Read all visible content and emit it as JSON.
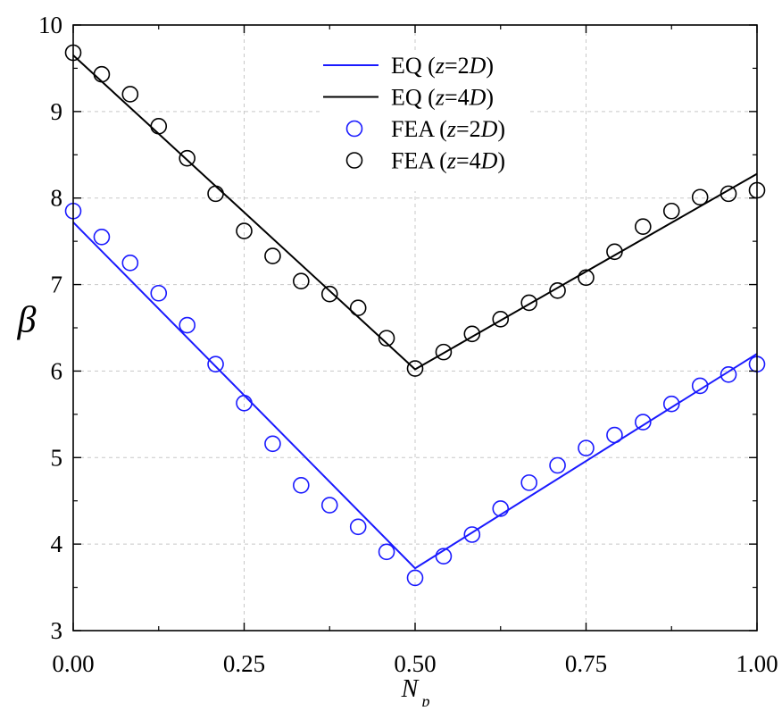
{
  "chart_data": {
    "type": "line",
    "title": "",
    "xlabel": "N",
    "xlabel_sub": "p",
    "ylabel": "β",
    "xlim": [
      0,
      1
    ],
    "ylim": [
      3,
      10
    ],
    "grid": true,
    "legend_placement": "top-center",
    "x_ticks": [
      0,
      0.25,
      0.5,
      0.75,
      1
    ],
    "x_tick_labels": [
      "0.00",
      "0.25",
      "0.50",
      "0.75",
      "1.00"
    ],
    "y_ticks": [
      3,
      4,
      5,
      6,
      7,
      8,
      9,
      10
    ],
    "y_tick_labels": [
      "3",
      "4",
      "5",
      "6",
      "7",
      "8",
      "9",
      "10"
    ],
    "series": [
      {
        "name": "EQ (z=2D)",
        "legend_parts": [
          {
            "t": "EQ (",
            "i": false
          },
          {
            "t": "z",
            "i": true
          },
          {
            "t": "=2",
            "i": false
          },
          {
            "t": "D",
            "i": true
          },
          {
            "t": ")",
            "i": false
          }
        ],
        "kind": "line",
        "color": "#1a1aff",
        "x": [
          0,
          0.5,
          1.0
        ],
        "y": [
          7.72,
          3.72,
          6.2
        ]
      },
      {
        "name": "EQ (z=4D)",
        "legend_parts": [
          {
            "t": "EQ (",
            "i": false
          },
          {
            "t": "z",
            "i": true
          },
          {
            "t": "=4",
            "i": false
          },
          {
            "t": "D",
            "i": true
          },
          {
            "t": ")",
            "i": false
          }
        ],
        "kind": "line",
        "color": "#000000",
        "x": [
          0,
          0.5,
          1.0
        ],
        "y": [
          9.65,
          6.02,
          8.28
        ]
      },
      {
        "name": "FEA (z=2D)",
        "legend_parts": [
          {
            "t": "FEA  (",
            "i": false
          },
          {
            "t": "z",
            "i": true
          },
          {
            "t": "=2",
            "i": false
          },
          {
            "t": "D",
            "i": true
          },
          {
            "t": ")",
            "i": false
          }
        ],
        "kind": "scatter",
        "color": "#1a1aff",
        "x": [
          0,
          0.0417,
          0.0833,
          0.125,
          0.1667,
          0.2083,
          0.25,
          0.2917,
          0.3333,
          0.375,
          0.4167,
          0.4583,
          0.5,
          0.5417,
          0.5833,
          0.625,
          0.6667,
          0.7083,
          0.75,
          0.7917,
          0.8333,
          0.875,
          0.9167,
          0.9583,
          1.0
        ],
        "y": [
          7.85,
          7.55,
          7.25,
          6.9,
          6.53,
          6.08,
          5.63,
          5.16,
          4.68,
          4.45,
          4.2,
          3.91,
          3.61,
          3.86,
          4.11,
          4.41,
          4.71,
          4.91,
          5.11,
          5.26,
          5.41,
          5.62,
          5.83,
          5.96,
          6.08
        ]
      },
      {
        "name": "FEA (z=4D)",
        "legend_parts": [
          {
            "t": "FEA  (",
            "i": false
          },
          {
            "t": "z",
            "i": true
          },
          {
            "t": "=4",
            "i": false
          },
          {
            "t": "D",
            "i": true
          },
          {
            "t": ")",
            "i": false
          }
        ],
        "kind": "scatter",
        "color": "#000000",
        "x": [
          0,
          0.0417,
          0.0833,
          0.125,
          0.1667,
          0.2083,
          0.25,
          0.2917,
          0.3333,
          0.375,
          0.4167,
          0.4583,
          0.5,
          0.5417,
          0.5833,
          0.625,
          0.6667,
          0.7083,
          0.75,
          0.7917,
          0.8333,
          0.875,
          0.9167,
          0.9583,
          1.0
        ],
        "y": [
          9.68,
          9.43,
          9.2,
          8.83,
          8.46,
          8.05,
          7.62,
          7.33,
          7.04,
          6.89,
          6.73,
          6.38,
          6.03,
          6.22,
          6.43,
          6.6,
          6.79,
          6.93,
          7.08,
          7.38,
          7.67,
          7.85,
          8.01,
          8.05,
          8.09
        ]
      }
    ]
  }
}
